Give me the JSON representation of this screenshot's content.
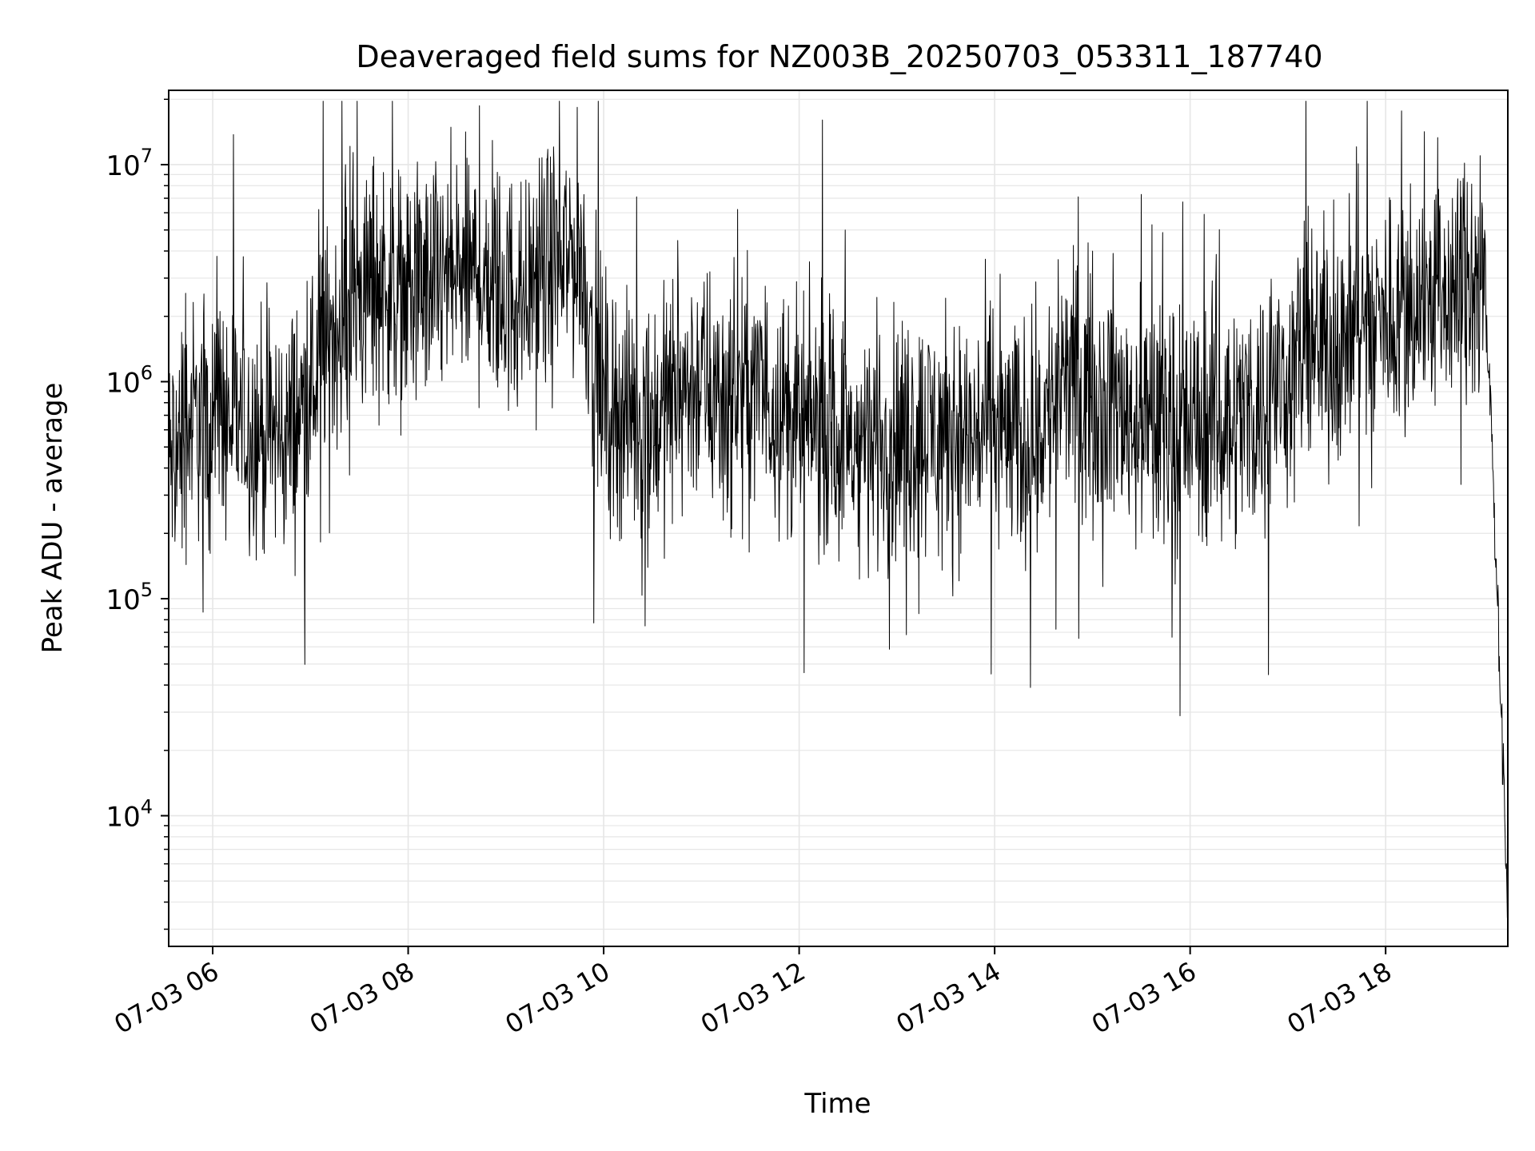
{
  "chart_data": {
    "type": "line",
    "title": "Deaveraged field sums for NZ003B_20250703_053311_187740",
    "xlabel": "Time",
    "ylabel": "Peak ADU - average",
    "x_range": [
      "2025-07-03 05:33",
      "2025-07-03 19:15"
    ],
    "yscale": "log",
    "ylim": [
      2500,
      22000000
    ],
    "grid": true,
    "legend": "none",
    "line_color": "#000000",
    "grid_color": "#e6e6e6",
    "x_ticks": [
      {
        "t": "2025-07-03 06:00",
        "label": "07-03 06"
      },
      {
        "t": "2025-07-03 08:00",
        "label": "07-03 08"
      },
      {
        "t": "2025-07-03 10:00",
        "label": "07-03 10"
      },
      {
        "t": "2025-07-03 12:00",
        "label": "07-03 12"
      },
      {
        "t": "2025-07-03 14:00",
        "label": "07-03 14"
      },
      {
        "t": "2025-07-03 16:00",
        "label": "07-03 16"
      },
      {
        "t": "2025-07-03 18:00",
        "label": "07-03 18"
      }
    ],
    "y_ticks": [
      {
        "value": 10000,
        "base": "10",
        "exp": "4"
      },
      {
        "value": 100000,
        "base": "10",
        "exp": "5"
      },
      {
        "value": 1000000,
        "base": "10",
        "exp": "6"
      },
      {
        "value": 10000000,
        "base": "10",
        "exp": "7"
      }
    ],
    "series": [
      {
        "x": [
          "2025-07-03 05:33",
          "2025-07-03 05:45",
          "2025-07-03 06:00",
          "2025-07-03 06:15",
          "2025-07-03 06:30",
          "2025-07-03 06:45",
          "2025-07-03 07:00",
          "2025-07-03 07:15",
          "2025-07-03 07:30",
          "2025-07-03 07:45",
          "2025-07-03 08:00",
          "2025-07-03 08:15",
          "2025-07-03 08:30",
          "2025-07-03 08:45",
          "2025-07-03 09:00",
          "2025-07-03 09:15",
          "2025-07-03 09:30",
          "2025-07-03 09:45",
          "2025-07-03 10:00",
          "2025-07-03 10:15",
          "2025-07-03 10:30",
          "2025-07-03 10:45",
          "2025-07-03 11:00",
          "2025-07-03 11:15",
          "2025-07-03 11:30",
          "2025-07-03 11:45",
          "2025-07-03 12:00",
          "2025-07-03 12:15",
          "2025-07-03 12:30",
          "2025-07-03 12:45",
          "2025-07-03 13:00",
          "2025-07-03 13:15",
          "2025-07-03 13:30",
          "2025-07-03 13:45",
          "2025-07-03 14:00",
          "2025-07-03 14:15",
          "2025-07-03 14:30",
          "2025-07-03 14:45",
          "2025-07-03 15:00",
          "2025-07-03 15:15",
          "2025-07-03 15:30",
          "2025-07-03 15:45",
          "2025-07-03 16:00",
          "2025-07-03 16:15",
          "2025-07-03 16:30",
          "2025-07-03 16:45",
          "2025-07-03 17:00",
          "2025-07-03 17:15",
          "2025-07-03 17:30",
          "2025-07-03 17:45",
          "2025-07-03 18:00",
          "2025-07-03 18:15",
          "2025-07-03 18:30",
          "2025-07-03 18:45",
          "2025-07-03 19:00",
          "2025-07-03 19:05",
          "2025-07-03 19:10",
          "2025-07-03 19:15"
        ],
        "y": [
          400000,
          650000,
          700000,
          650000,
          600000,
          550000,
          900000,
          1800000,
          2500000,
          3000000,
          2500000,
          2800000,
          3000000,
          3200000,
          2500000,
          2800000,
          3500000,
          4000000,
          800000,
          700000,
          650000,
          900000,
          1000000,
          800000,
          900000,
          850000,
          600000,
          650000,
          500000,
          550000,
          550000,
          600000,
          600000,
          550000,
          650000,
          500000,
          650000,
          1000000,
          900000,
          800000,
          650000,
          600000,
          600000,
          650000,
          700000,
          800000,
          1100000,
          1400000,
          1500000,
          1800000,
          2000000,
          2300000,
          2500000,
          2700000,
          2600000,
          600000,
          50000,
          4000
        ]
      }
    ]
  }
}
